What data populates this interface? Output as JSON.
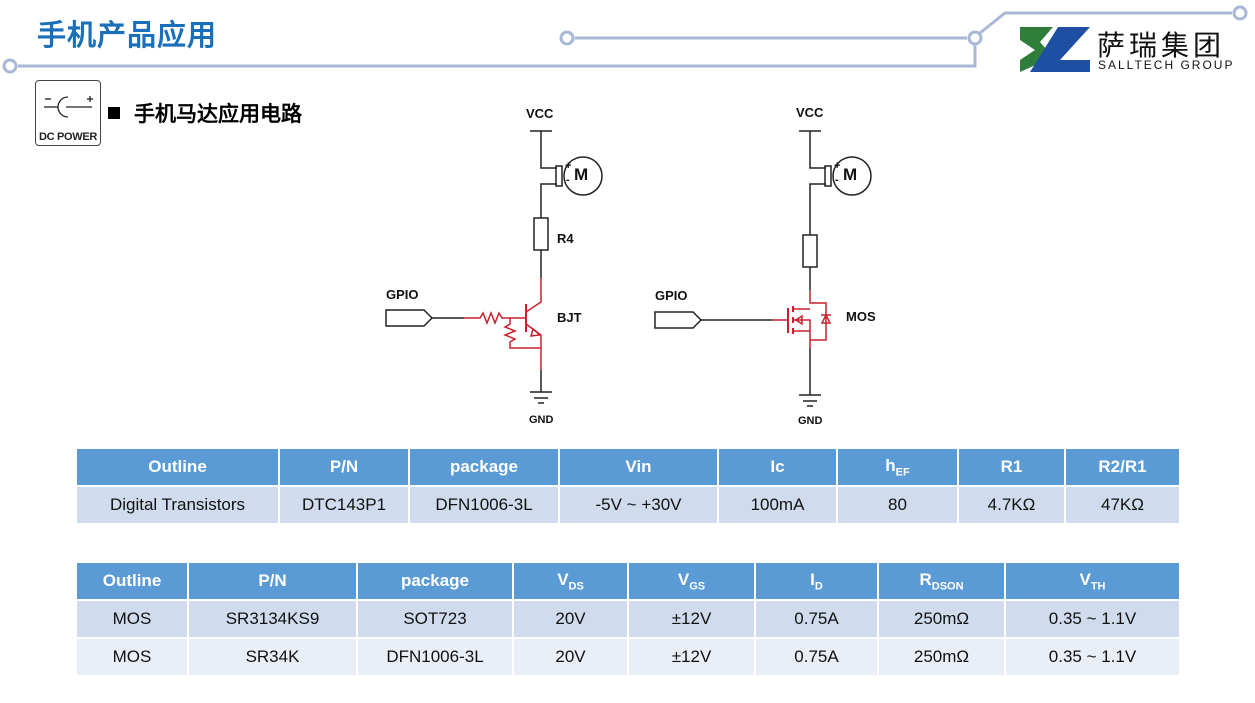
{
  "header": {
    "title": "手机产品应用"
  },
  "logo": {
    "name_cn": "萨瑞集团",
    "name_en": "SALLTECH GROUP",
    "colors": {
      "green": "#2e7d3a",
      "blue": "#1f4fa3"
    }
  },
  "dc_icon": {
    "label": "DC POWER",
    "icon": "dc-power-icon"
  },
  "section": {
    "title": "手机马达应用电路"
  },
  "circuit_bjt": {
    "vcc": "VCC",
    "motor": "M",
    "plus": "+",
    "minus": "-",
    "resistor": "R4",
    "input": "GPIO",
    "device": "BJT",
    "gnd": "GND"
  },
  "circuit_mos": {
    "vcc": "VCC",
    "motor": "M",
    "plus": "+",
    "minus": "-",
    "input": "GPIO",
    "device": "MOS",
    "gnd": "GND"
  },
  "colors": {
    "header_bg": "#5b9bd5",
    "row_odd": "#d0dcee",
    "row_even": "#e9eef7",
    "title": "#1a6fba",
    "highlight": "#c8202f"
  },
  "table1": {
    "headers": [
      {
        "t": "Outline",
        "s": ""
      },
      {
        "t": "P/N",
        "s": ""
      },
      {
        "t": "package",
        "s": ""
      },
      {
        "t": "Vin",
        "s": ""
      },
      {
        "t": "Ic",
        "s": ""
      },
      {
        "t": "h",
        "s": "EF"
      },
      {
        "t": "R1",
        "s": ""
      },
      {
        "t": "R2/R1",
        "s": ""
      }
    ],
    "rows": [
      [
        "Digital Transistors",
        "DTC143P1",
        "DFN1006-3L",
        "-5V ~ +30V",
        "100mA",
        "80",
        "4.7KΩ",
        "47KΩ"
      ]
    ]
  },
  "table2": {
    "headers": [
      {
        "t": "Outline",
        "s": ""
      },
      {
        "t": "P/N",
        "s": ""
      },
      {
        "t": "package",
        "s": ""
      },
      {
        "t": "V",
        "s": "DS"
      },
      {
        "t": "V",
        "s": "GS"
      },
      {
        "t": "I",
        "s": "D"
      },
      {
        "t": "R",
        "s": "DSON"
      },
      {
        "t": "V",
        "s": "TH"
      }
    ],
    "rows": [
      [
        "MOS",
        "SR3134KS9",
        "SOT723",
        "20V",
        "±12V",
        "0.75A",
        "250mΩ",
        "0.35 ~ 1.1V"
      ],
      [
        "MOS",
        "SR34K",
        "DFN1006-3L",
        "20V",
        "±12V",
        "0.75A",
        "250mΩ",
        "0.35 ~ 1.1V"
      ]
    ]
  }
}
